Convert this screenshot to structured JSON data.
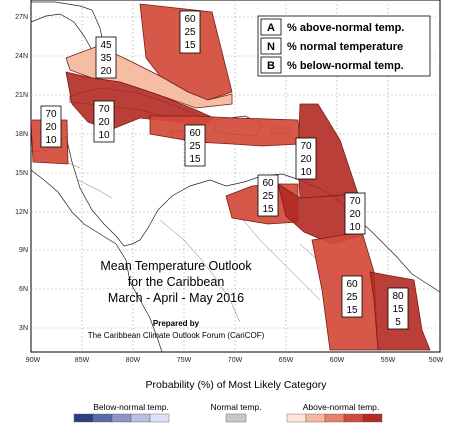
{
  "map": {
    "title_lines": [
      "Mean Temperature Outlook",
      "for the Caribbean",
      "March - April - May 2016"
    ],
    "prepared_lines": [
      "Prepared by",
      "The Caribbean Climate Outlook Forum (CariCOF)"
    ],
    "lat_labels": [
      "27N",
      "24N",
      "21N",
      "18N",
      "15N",
      "12N",
      "9N",
      "6N",
      "3N"
    ],
    "lon_labels": [
      "90W",
      "85W",
      "80W",
      "75W",
      "70W",
      "65W",
      "60W",
      "55W",
      "50W"
    ],
    "region_probabilities": [
      {
        "id": "north-atlantic",
        "A": "60",
        "N": "25",
        "B": "15"
      },
      {
        "id": "bahamas",
        "A": "45",
        "N": "35",
        "B": "20"
      },
      {
        "id": "belize",
        "A": "70",
        "N": "20",
        "B": "10"
      },
      {
        "id": "cuba-cayman",
        "A": "70",
        "N": "20",
        "B": "10"
      },
      {
        "id": "greater-antilles",
        "A": "60",
        "N": "25",
        "B": "15"
      },
      {
        "id": "lesser-antilles",
        "A": "70",
        "N": "20",
        "B": "10"
      },
      {
        "id": "abc-islands",
        "A": "60",
        "N": "25",
        "B": "15"
      },
      {
        "id": "trinidad-guyana",
        "A": "70",
        "N": "20",
        "B": "10"
      },
      {
        "id": "guianas",
        "A": "60",
        "N": "25",
        "B": "15"
      },
      {
        "id": "french-guiana",
        "A": "80",
        "N": "15",
        "B": "5"
      }
    ]
  },
  "key": {
    "rows": [
      {
        "letter": "A",
        "text": "% above-normal temp."
      },
      {
        "letter": "N",
        "text": "% normal temperature"
      },
      {
        "letter": "B",
        "text": "% below-normal temp."
      }
    ]
  },
  "legend": {
    "title": "Probability (%) of Most Likely Category",
    "below_label": "Below-normal temp.",
    "normal_label": "Normal temp.",
    "above_label": "Above-normal temp.",
    "below_colors": [
      "#2c3e7f",
      "#5a6aa8",
      "#8a94c8",
      "#b8bfe0",
      "#dde1f2"
    ],
    "normal_color": "#c8c8c8",
    "above_colors": [
      "#fde4d8",
      "#f6b9a0",
      "#e8806a",
      "#d24a3a",
      "#b22a22"
    ]
  }
}
